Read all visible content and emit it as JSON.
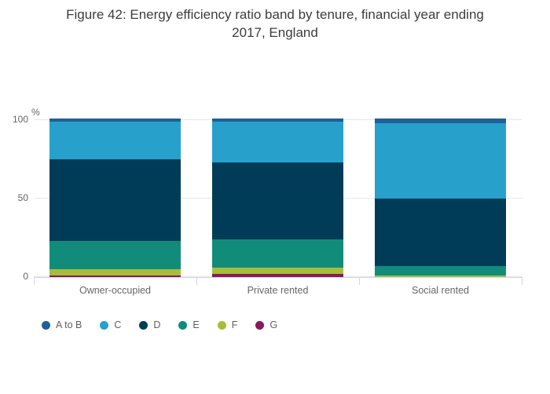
{
  "title": {
    "line1": "Figure 42: Energy efficiency ratio band by tenure, financial year ending",
    "line2": "2017, England"
  },
  "chart_data": {
    "type": "bar",
    "stacked": true,
    "title": "Figure 42: Energy efficiency ratio band by tenure, financial year ending 2017, England",
    "unit_label": "%",
    "xlabel": "",
    "ylabel": "%",
    "ylim": [
      0,
      100
    ],
    "yticks": [
      0,
      50,
      100
    ],
    "grid": "horizontal",
    "legend_position": "bottom-left",
    "categories": [
      "Owner-occupied",
      "Private rented",
      "Social rented"
    ],
    "series": [
      {
        "name": "A to B",
        "color": "#206095",
        "values": [
          2,
          2,
          3
        ]
      },
      {
        "name": "C",
        "color": "#27a0cc",
        "values": [
          24,
          26,
          48
        ]
      },
      {
        "name": "D",
        "color": "#003c57",
        "values": [
          52,
          49,
          43
        ]
      },
      {
        "name": "E",
        "color": "#118c7b",
        "values": [
          18,
          18,
          6
        ]
      },
      {
        "name": "F",
        "color": "#a8bd3a",
        "values": [
          4,
          4,
          1
        ]
      },
      {
        "name": "G",
        "color": "#871a5b",
        "values": [
          1,
          2,
          0.2
        ]
      }
    ]
  },
  "colors": {
    "gridline": "#e6e6e6",
    "axis_line": "#ccd6eb",
    "axis_text": "#666666",
    "title_text": "#3c3c3c",
    "legend_text": "#5f5f5f",
    "background": "#ffffff"
  }
}
